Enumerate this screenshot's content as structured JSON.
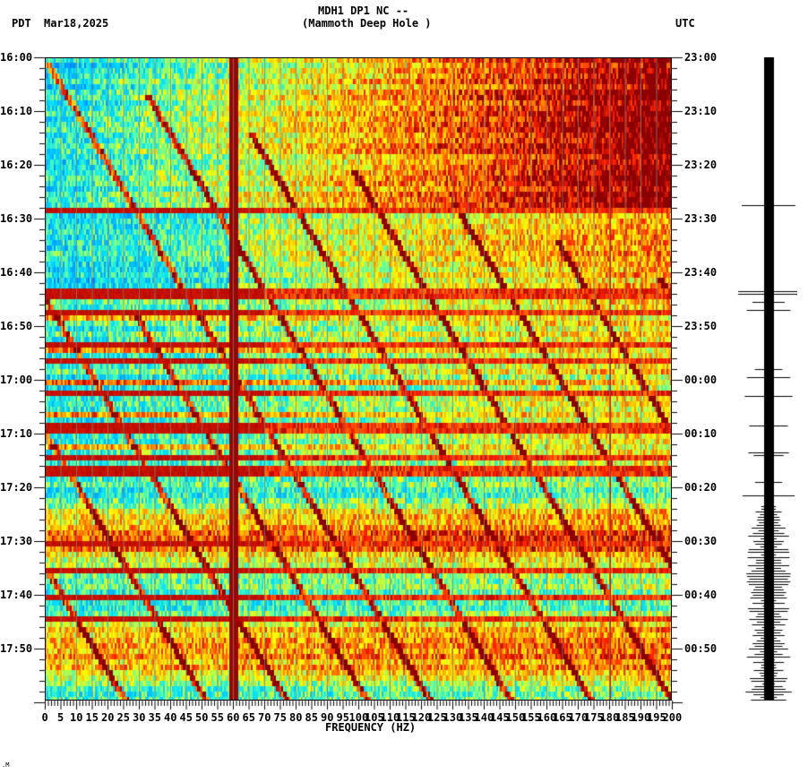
{
  "header": {
    "station_line": "MDH1 DP1 NC --",
    "site_name": "(Mammoth Deep Hole )",
    "left_timezone": "PDT",
    "date": "Mar18,2025",
    "right_timezone": "UTC"
  },
  "footer_marker": ".M",
  "chart_data": {
    "type": "heatmap",
    "title": "MDH1 DP1 NC -- (Mammoth Deep Hole )",
    "subtitle": "Mar18,2025",
    "xlabel": "FREQUENCY (HZ)",
    "ylabel_left": "PDT",
    "ylabel_right": "UTC",
    "xlim": [
      0,
      200
    ],
    "x_ticks": [
      "0",
      "5",
      "10",
      "15",
      "20",
      "25",
      "30",
      "35",
      "40",
      "45",
      "50",
      "55",
      "60",
      "65",
      "70",
      "75",
      "80",
      "85",
      "90",
      "95",
      "100",
      "105",
      "110",
      "115",
      "120",
      "125",
      "130",
      "135",
      "140",
      "145",
      "150",
      "155",
      "160",
      "165",
      "170",
      "175",
      "180",
      "185",
      "190",
      "195",
      "200"
    ],
    "y_ticks_left": [
      "16:00",
      "16:10",
      "16:20",
      "16:30",
      "16:40",
      "16:50",
      "17:00",
      "17:10",
      "17:20",
      "17:30",
      "17:40",
      "17:50"
    ],
    "y_ticks_right": [
      "23:00",
      "23:10",
      "23:20",
      "23:30",
      "23:40",
      "23:50",
      "00:00",
      "00:10",
      "00:20",
      "00:30",
      "00:40",
      "00:50"
    ],
    "time_range_pdt": [
      "16:00",
      "18:00"
    ],
    "colormap": [
      "#0050ff",
      "#00a0ff",
      "#00e0ff",
      "#60ffa0",
      "#ffff00",
      "#ffa000",
      "#ff2000",
      "#8b0000"
    ],
    "grid": "vertical lines every 5 Hz",
    "persistent_lines_hz": [
      60,
      180
    ],
    "broadband_bursts_pdt": [
      "16:27",
      "16:44",
      "17:08",
      "17:17",
      "17:35",
      "17:40",
      "17:45"
    ],
    "regions": [
      {
        "time": "16:00-16:28",
        "low_freq_level": "low (blue)",
        "high_freq_level": "high (orange/red)"
      },
      {
        "time": "16:28-16:44",
        "low_freq_level": "low (blue)",
        "high_freq_level": "moderate (cyan/yellow)"
      },
      {
        "time": "16:44-17:20",
        "low_freq_level": "banded (blue with red stripes)",
        "high_freq_level": "moderate (cyan/yellow)"
      },
      {
        "time": "17:20-18:00",
        "low_freq_level": "mixed",
        "high_freq_level": "moderate-high (yellow/orange)"
      }
    ],
    "seismogram_trace": "vertical waveform on right, bursts at 16:27, 16:44 and increasing activity after 17:20"
  }
}
